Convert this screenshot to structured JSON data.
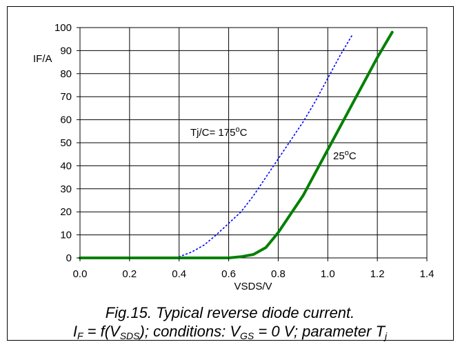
{
  "chart_data": {
    "type": "line",
    "title": "",
    "xlabel": "VSDS/V",
    "ylabel": "IF/A",
    "xlim": [
      0.0,
      1.4
    ],
    "ylim": [
      0,
      100
    ],
    "xticks": [
      "0.0",
      "0.2",
      "0.4",
      "0.6",
      "0.8",
      "1.0",
      "1.2",
      "1.4"
    ],
    "yticks": [
      "0",
      "10",
      "20",
      "30",
      "40",
      "50",
      "60",
      "70",
      "80",
      "90",
      "100"
    ],
    "grid": true,
    "legend": "none",
    "series": [
      {
        "name": "Tj/C= 175°C",
        "color": "#0000ff",
        "style": "dashed",
        "x": [
          0.0,
          0.38,
          0.4,
          0.45,
          0.5,
          0.55,
          0.6,
          0.65,
          0.7,
          0.75,
          0.8,
          0.85,
          0.9,
          0.95,
          1.0,
          1.05,
          1.1
        ],
        "y": [
          0,
          0,
          0.5,
          2.5,
          5.5,
          10,
          15,
          20,
          27,
          35,
          43,
          51,
          59,
          68,
          78,
          88,
          97
        ]
      },
      {
        "name": "25°C",
        "color": "#008000",
        "style": "solid",
        "x": [
          0.0,
          0.6,
          0.65,
          0.7,
          0.75,
          0.8,
          0.85,
          0.9,
          0.95,
          1.0,
          1.05,
          1.1,
          1.15,
          1.2,
          1.26
        ],
        "y": [
          0,
          0,
          0.5,
          1.5,
          4.5,
          11,
          19,
          27,
          37,
          47,
          57,
          67,
          77,
          87,
          98
        ]
      }
    ]
  },
  "annotations": {
    "tj_label_prefix": "Tj/C= 175",
    "tj_label_deg": "o",
    "tj_label_suffix": "C",
    "t25_label_prefix": "25",
    "t25_label_deg": "o",
    "t25_label_suffix": "C"
  },
  "caption": {
    "line1": "Fig.15.   Typical reverse diode current.",
    "line2_a": "I",
    "line2_a_sub": "F",
    "line2_b": " = f(V",
    "line2_b_sub": "SDS",
    "line2_c": "); conditions: V",
    "line2_c_sub": "GS",
    "line2_d": " = 0 V; parameter T",
    "line2_d_sub": "j"
  }
}
